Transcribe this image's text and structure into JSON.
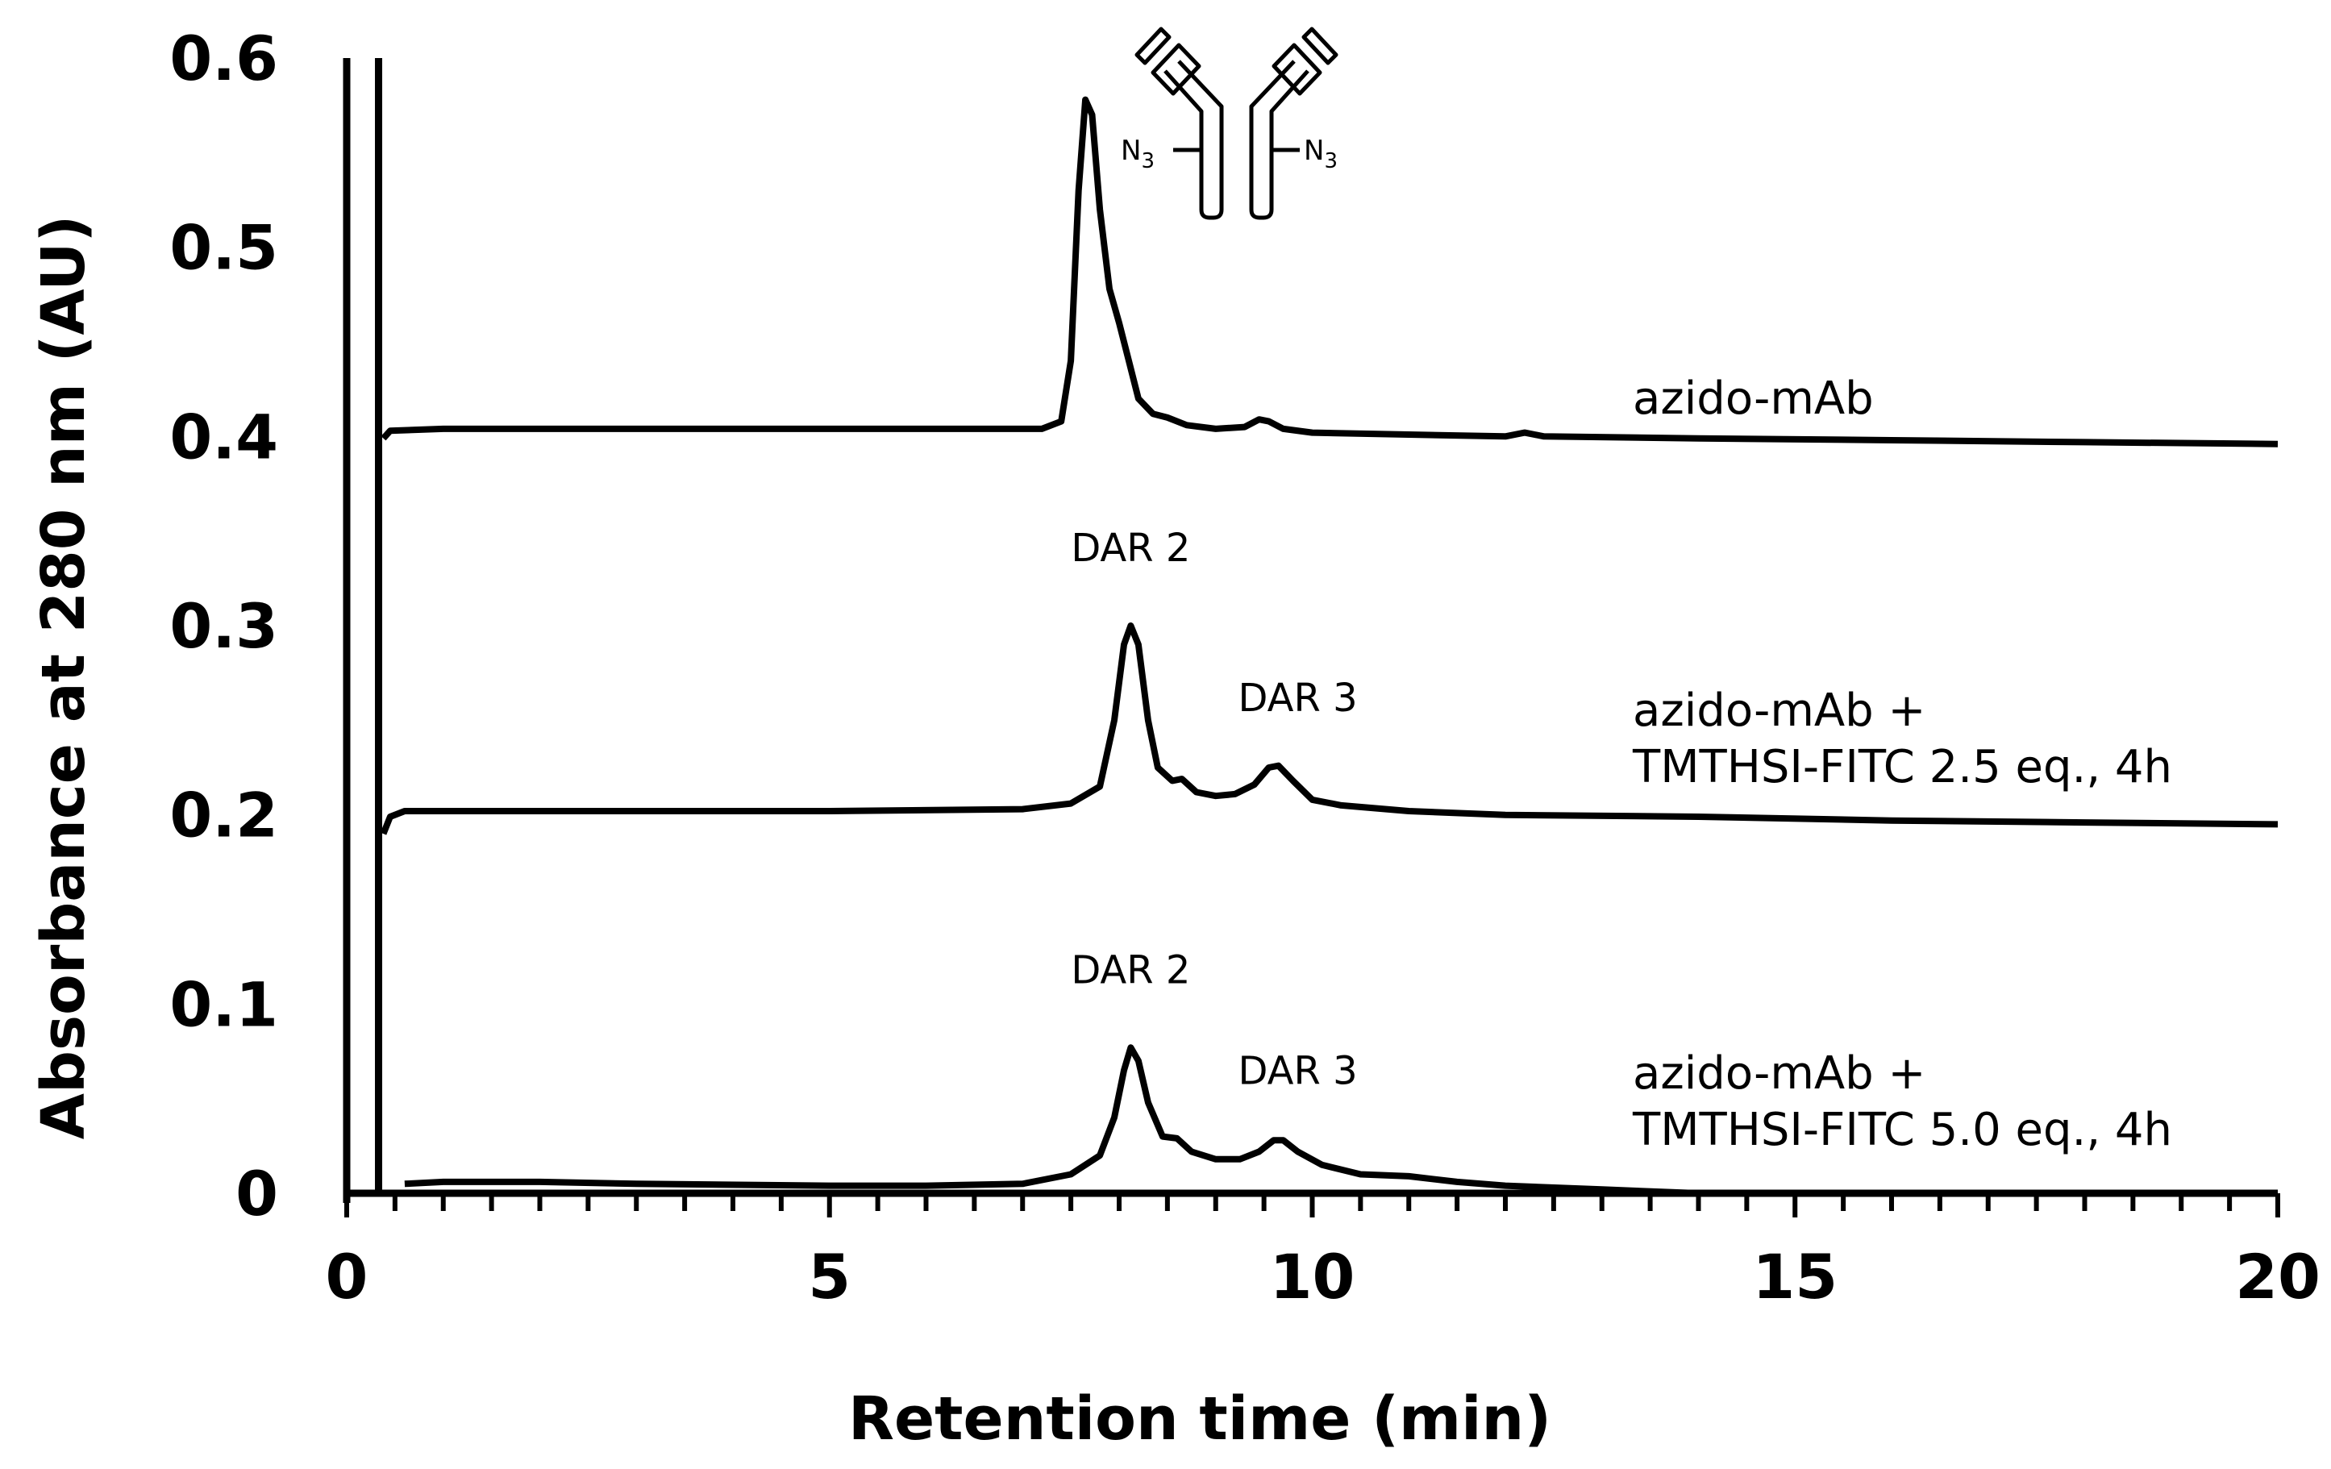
{
  "chart_data": {
    "type": "line",
    "xlabel": "Retention time (min)",
    "ylabel": "Absorbance at 280 nm (AU)",
    "xlim": [
      0,
      20
    ],
    "ylim": [
      0,
      0.6
    ],
    "x_ticks": [
      "0",
      "5",
      "10",
      "15",
      "20"
    ],
    "y_ticks": [
      "0",
      "0.1",
      "0.2",
      "0.3",
      "0.4",
      "0.5",
      "0.6"
    ],
    "grid": false,
    "legend": "none",
    "series": [
      {
        "label_lines": [
          "azido-mAb"
        ],
        "points": [
          [
            0.38,
            0.399
          ],
          [
            0.45,
            0.403
          ],
          [
            1,
            0.404
          ],
          [
            3,
            0.404
          ],
          [
            5,
            0.404
          ],
          [
            6.5,
            0.404
          ],
          [
            7.2,
            0.404
          ],
          [
            7.4,
            0.408
          ],
          [
            7.5,
            0.44
          ],
          [
            7.58,
            0.53
          ],
          [
            7.65,
            0.578
          ],
          [
            7.72,
            0.57
          ],
          [
            7.8,
            0.52
          ],
          [
            7.9,
            0.478
          ],
          [
            8.0,
            0.46
          ],
          [
            8.1,
            0.44
          ],
          [
            8.2,
            0.42
          ],
          [
            8.35,
            0.412
          ],
          [
            8.5,
            0.41
          ],
          [
            8.7,
            0.406
          ],
          [
            9.0,
            0.404
          ],
          [
            9.3,
            0.405
          ],
          [
            9.45,
            0.409
          ],
          [
            9.55,
            0.408
          ],
          [
            9.7,
            0.404
          ],
          [
            10,
            0.402
          ],
          [
            11,
            0.401
          ],
          [
            12,
            0.4
          ],
          [
            12.2,
            0.402
          ],
          [
            12.4,
            0.4
          ],
          [
            14,
            0.399
          ],
          [
            16,
            0.398
          ],
          [
            18,
            0.397
          ],
          [
            20,
            0.396
          ]
        ],
        "peaks": []
      },
      {
        "label_lines": [
          "azido-mAb +",
          "TMTHSI-FITC 2.5 eq., 4h"
        ],
        "points": [
          [
            0.38,
            0.19
          ],
          [
            0.45,
            0.199
          ],
          [
            0.6,
            0.202
          ],
          [
            1,
            0.202
          ],
          [
            3,
            0.202
          ],
          [
            5,
            0.202
          ],
          [
            7,
            0.203
          ],
          [
            7.5,
            0.206
          ],
          [
            7.8,
            0.215
          ],
          [
            7.95,
            0.25
          ],
          [
            8.05,
            0.29
          ],
          [
            8.12,
            0.3
          ],
          [
            8.2,
            0.29
          ],
          [
            8.3,
            0.25
          ],
          [
            8.4,
            0.225
          ],
          [
            8.55,
            0.218
          ],
          [
            8.65,
            0.219
          ],
          [
            8.8,
            0.212
          ],
          [
            9.0,
            0.21
          ],
          [
            9.2,
            0.211
          ],
          [
            9.4,
            0.216
          ],
          [
            9.55,
            0.225
          ],
          [
            9.65,
            0.226
          ],
          [
            9.8,
            0.218
          ],
          [
            10,
            0.208
          ],
          [
            10.3,
            0.205
          ],
          [
            11,
            0.202
          ],
          [
            12,
            0.2
          ],
          [
            14,
            0.199
          ],
          [
            16,
            0.197
          ],
          [
            18,
            0.196
          ],
          [
            20,
            0.195
          ]
        ],
        "peaks": [
          {
            "label": "DAR 2",
            "x": 8.12
          },
          {
            "label": "DAR 3",
            "x": 9.6
          }
        ]
      },
      {
        "label_lines": [
          "azido-mAb +",
          "TMTHSI-FITC 5.0 eq., 4h"
        ],
        "points": [
          [
            0.6,
            0.005
          ],
          [
            1,
            0.006
          ],
          [
            2,
            0.006
          ],
          [
            3,
            0.005
          ],
          [
            5,
            0.004
          ],
          [
            6,
            0.004
          ],
          [
            7,
            0.005
          ],
          [
            7.5,
            0.01
          ],
          [
            7.8,
            0.02
          ],
          [
            7.95,
            0.04
          ],
          [
            8.05,
            0.065
          ],
          [
            8.12,
            0.077
          ],
          [
            8.2,
            0.07
          ],
          [
            8.3,
            0.048
          ],
          [
            8.45,
            0.03
          ],
          [
            8.6,
            0.029
          ],
          [
            8.75,
            0.022
          ],
          [
            9.0,
            0.018
          ],
          [
            9.25,
            0.018
          ],
          [
            9.45,
            0.022
          ],
          [
            9.6,
            0.028
          ],
          [
            9.7,
            0.028
          ],
          [
            9.85,
            0.022
          ],
          [
            10.1,
            0.015
          ],
          [
            10.5,
            0.01
          ],
          [
            11,
            0.009
          ],
          [
            11.5,
            0.006
          ],
          [
            12,
            0.004
          ],
          [
            13,
            0.002
          ],
          [
            14,
            0.0
          ],
          [
            20,
            0.0
          ]
        ],
        "peaks": [
          {
            "label": "DAR 2",
            "x": 8.12
          },
          {
            "label": "DAR 3",
            "x": 9.6
          }
        ]
      }
    ],
    "annotations": {
      "icon_labels": [
        "N3",
        "N3"
      ]
    }
  }
}
